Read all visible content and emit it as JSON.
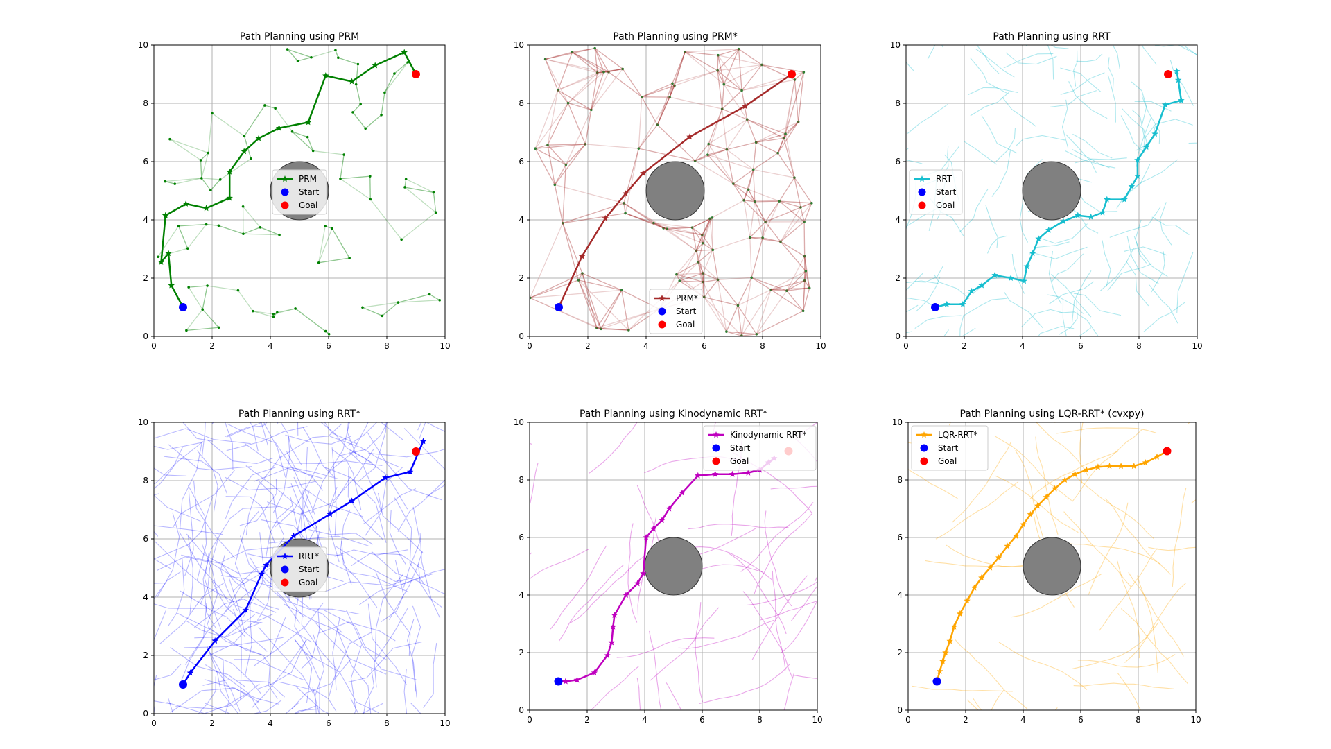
{
  "colors": {
    "prm": "#008000",
    "prm_star": "#a52a2a",
    "rrt": "#17becf",
    "rrt_star": "#0000ff",
    "kino": "#bf00bf",
    "lqr": "#ffa500",
    "start": "#0000ff",
    "goal": "#ff0000",
    "obstacle": "#808080",
    "grid": "#b0b0b0"
  },
  "chart_data": [
    {
      "type": "line",
      "title": "Path Planning using PRM",
      "xlim": [
        0,
        10
      ],
      "ylim": [
        0,
        10
      ],
      "xticks": [
        0,
        2,
        4,
        6,
        8,
        10
      ],
      "yticks": [
        0,
        2,
        4,
        6,
        8,
        10
      ],
      "grid": true,
      "legend_position": "center",
      "color_key": "prm",
      "obstacle": {
        "center": [
          5,
          5
        ],
        "radius": 1
      },
      "start": [
        1,
        1
      ],
      "goal": [
        9,
        9
      ],
      "series": [
        {
          "name": "PRM",
          "x": [
            1.0,
            0.6,
            0.5,
            0.25,
            0.4,
            0.4,
            1.1,
            1.8,
            2.6,
            2.6,
            3.1,
            3.6,
            4.3,
            5.3,
            5.9,
            6.8,
            7.6,
            8.6,
            9.0
          ],
          "y": [
            1.0,
            1.75,
            2.85,
            2.55,
            4.15,
            4.15,
            4.55,
            4.4,
            4.75,
            5.65,
            6.35,
            6.8,
            7.15,
            7.35,
            8.95,
            8.75,
            9.3,
            9.75,
            9.0
          ]
        },
        {
          "name": "Start",
          "x": [
            1
          ],
          "y": [
            1
          ]
        },
        {
          "name": "Goal",
          "x": [
            9
          ],
          "y": [
            9
          ]
        }
      ]
    },
    {
      "type": "line",
      "title": "Path Planning using PRM*",
      "xlim": [
        0,
        10
      ],
      "ylim": [
        0,
        10
      ],
      "xticks": [
        0,
        2,
        4,
        6,
        8,
        10
      ],
      "yticks": [
        0,
        2,
        4,
        6,
        8,
        10
      ],
      "grid": true,
      "legend_position": "lower center",
      "color_key": "prm_star",
      "obstacle": {
        "center": [
          5,
          5
        ],
        "radius": 1
      },
      "start": [
        1,
        1
      ],
      "goal": [
        9,
        9
      ],
      "series": [
        {
          "name": "PRM*",
          "x": [
            1.0,
            1.8,
            2.6,
            3.3,
            3.9,
            5.5,
            7.4,
            9.0
          ],
          "y": [
            1.0,
            2.75,
            4.05,
            4.9,
            5.6,
            6.85,
            7.9,
            9.0
          ]
        },
        {
          "name": "Start",
          "x": [
            1
          ],
          "y": [
            1
          ]
        },
        {
          "name": "Goal",
          "x": [
            9
          ],
          "y": [
            9
          ]
        }
      ]
    },
    {
      "type": "line",
      "title": "Path Planning using RRT",
      "xlim": [
        0,
        10
      ],
      "ylim": [
        0,
        10
      ],
      "xticks": [
        0,
        2,
        4,
        6,
        8,
        10
      ],
      "yticks": [
        0,
        2,
        4,
        6,
        8,
        10
      ],
      "grid": true,
      "legend_position": "upper left",
      "color_key": "rrt",
      "obstacle": {
        "center": [
          5,
          5
        ],
        "radius": 1
      },
      "start": [
        1,
        1
      ],
      "goal": [
        9,
        9
      ],
      "series": [
        {
          "name": "RRT",
          "x": [
            1.0,
            1.4,
            1.95,
            2.25,
            2.6,
            3.05,
            3.6,
            4.05,
            4.15,
            4.35,
            4.55,
            4.9,
            5.4,
            5.9,
            6.35,
            6.75,
            6.9,
            7.5,
            7.75,
            7.95,
            7.95,
            8.25,
            8.55,
            8.9,
            9.45,
            9.35,
            9.3
          ],
          "y": [
            1.0,
            1.1,
            1.1,
            1.55,
            1.75,
            2.1,
            2.0,
            1.9,
            2.4,
            2.85,
            3.35,
            3.65,
            3.95,
            4.15,
            4.1,
            4.25,
            4.7,
            4.7,
            5.15,
            5.5,
            6.05,
            6.5,
            6.95,
            7.95,
            8.1,
            8.8,
            9.1
          ]
        },
        {
          "name": "Start",
          "x": [
            1
          ],
          "y": [
            1
          ]
        },
        {
          "name": "Goal",
          "x": [
            9
          ],
          "y": [
            9
          ]
        }
      ]
    },
    {
      "type": "line",
      "title": "Path Planning using RRT*",
      "xlim": [
        0,
        10
      ],
      "ylim": [
        0,
        10
      ],
      "xticks": [
        0,
        2,
        4,
        6,
        8,
        10
      ],
      "yticks": [
        0,
        2,
        4,
        6,
        8,
        10
      ],
      "grid": true,
      "legend_position": "center",
      "color_key": "rrt_star",
      "obstacle": {
        "center": [
          5,
          5
        ],
        "radius": 1
      },
      "start": [
        1,
        1
      ],
      "goal": [
        9,
        9
      ],
      "series": [
        {
          "name": "RRT*",
          "x": [
            1.0,
            1.25,
            2.1,
            3.15,
            3.7,
            3.85,
            4.8,
            6.05,
            6.8,
            7.95,
            8.8,
            9.25
          ],
          "y": [
            1.0,
            1.4,
            2.5,
            3.55,
            4.8,
            5.1,
            6.1,
            6.85,
            7.3,
            8.1,
            8.3,
            9.35
          ]
        },
        {
          "name": "Start",
          "x": [
            1
          ],
          "y": [
            1
          ]
        },
        {
          "name": "Goal",
          "x": [
            9
          ],
          "y": [
            9
          ]
        }
      ]
    },
    {
      "type": "line",
      "title": "Path Planning using Kinodynamic RRT*",
      "xlim": [
        0,
        10
      ],
      "ylim": [
        0,
        10
      ],
      "xticks": [
        0,
        2,
        4,
        6,
        8,
        10
      ],
      "yticks": [
        0,
        2,
        4,
        6,
        8,
        10
      ],
      "grid": true,
      "legend_position": "upper right",
      "color_key": "kino",
      "obstacle": {
        "center": [
          5,
          5
        ],
        "radius": 1
      },
      "start": [
        1,
        1
      ],
      "goal": [
        9,
        9
      ],
      "series": [
        {
          "name": "Kinodynamic RRT*",
          "x": [
            1.0,
            1.25,
            1.65,
            2.25,
            2.7,
            2.85,
            2.9,
            2.95,
            3.35,
            3.75,
            3.95,
            4.05,
            4.3,
            4.6,
            4.85,
            5.3,
            5.85,
            6.45,
            7.05,
            7.6,
            8.0,
            8.3,
            8.5
          ],
          "y": [
            1.0,
            1.0,
            1.05,
            1.3,
            1.9,
            2.35,
            2.9,
            3.3,
            4.0,
            4.4,
            4.75,
            6.0,
            6.3,
            6.6,
            7.0,
            7.55,
            8.15,
            8.2,
            8.2,
            8.25,
            8.35,
            8.6,
            8.75
          ]
        },
        {
          "name": "Start",
          "x": [
            1
          ],
          "y": [
            1
          ]
        },
        {
          "name": "Goal",
          "x": [
            9
          ],
          "y": [
            9
          ]
        }
      ]
    },
    {
      "type": "line",
      "title": "Path Planning using LQR-RRT* (cvxpy)",
      "xlim": [
        0,
        10
      ],
      "ylim": [
        0,
        10
      ],
      "xticks": [
        0,
        2,
        4,
        6,
        8,
        10
      ],
      "yticks": [
        0,
        2,
        4,
        6,
        8,
        10
      ],
      "grid": true,
      "legend_position": "upper left",
      "color_key": "lqr",
      "obstacle": {
        "center": [
          5,
          5
        ],
        "radius": 1
      },
      "start": [
        1,
        1
      ],
      "goal": [
        9,
        9
      ],
      "series": [
        {
          "name": "LQR-RRT*",
          "x": [
            1.0,
            1.1,
            1.2,
            1.3,
            1.45,
            1.6,
            1.8,
            2.05,
            2.3,
            2.55,
            2.85,
            3.15,
            3.45,
            3.75,
            4.0,
            4.25,
            4.5,
            4.8,
            5.1,
            5.45,
            5.8,
            6.2,
            6.6,
            7.0,
            7.4,
            7.85,
            8.25,
            8.65,
            9.0
          ],
          "y": [
            1.0,
            1.35,
            1.7,
            2.0,
            2.4,
            2.9,
            3.35,
            3.8,
            4.25,
            4.6,
            4.95,
            5.3,
            5.7,
            6.05,
            6.45,
            6.8,
            7.1,
            7.4,
            7.7,
            8.0,
            8.2,
            8.35,
            8.45,
            8.48,
            8.48,
            8.48,
            8.6,
            8.8,
            9.0
          ]
        },
        {
          "name": "Start",
          "x": [
            1
          ],
          "y": [
            1
          ]
        },
        {
          "name": "Goal",
          "x": [
            9
          ],
          "y": [
            9
          ]
        }
      ]
    }
  ]
}
